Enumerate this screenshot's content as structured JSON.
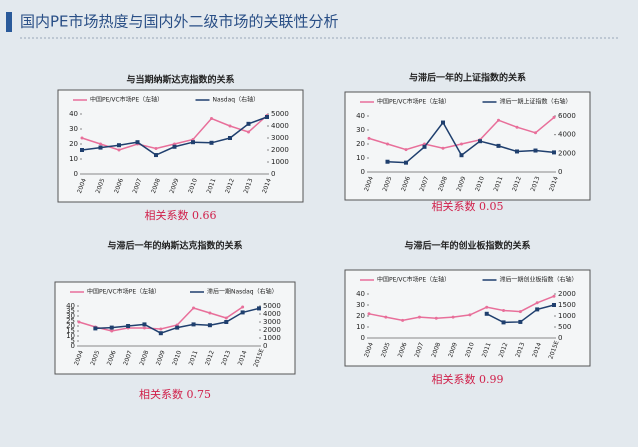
{
  "title": "国内PE市场热度与国内外二级市场的关联性分析",
  "chart_data": [
    {
      "type": "line",
      "title": "与当期纳斯达克指数的关系",
      "annotation": "相关系数 0.66",
      "categories": [
        "2004",
        "2005",
        "2006",
        "2007",
        "2008",
        "2009",
        "2010",
        "2011",
        "2012",
        "2013",
        "2014"
      ],
      "ylim": [
        0,
        40
      ],
      "yticks": [
        0,
        10,
        20,
        30,
        40
      ],
      "y2lim": [
        0,
        5000
      ],
      "y2ticks": [
        0,
        1000,
        2000,
        3000,
        4000,
        5000
      ],
      "series": [
        {
          "name": "中国PE/VC市场PE（左轴）",
          "color": "#e86f9a",
          "values": [
            24,
            20,
            16,
            20,
            17,
            20,
            23,
            37,
            32,
            28,
            39
          ]
        },
        {
          "name": "Nasdaq（右轴）",
          "color": "#1f3f6e",
          "axis": "y2",
          "values": [
            2000,
            2200,
            2400,
            2650,
            1580,
            2270,
            2650,
            2600,
            3000,
            4180,
            4750
          ]
        }
      ]
    },
    {
      "type": "line",
      "title": "与滞后一年的上证指数的关系",
      "annotation": "相关系数 0.05",
      "categories": [
        "2004",
        "2005",
        "2006",
        "2007",
        "2008",
        "2009",
        "2010",
        "2011",
        "2012",
        "2013",
        "2014"
      ],
      "ylim": [
        0,
        40
      ],
      "yticks": [
        0,
        10,
        20,
        30,
        40
      ],
      "y2lim": [
        0,
        6000
      ],
      "y2ticks": [
        0,
        2000,
        4000,
        6000
      ],
      "series": [
        {
          "name": "中国PE/VC市场PE（左轴）",
          "color": "#e86f9a",
          "values": [
            24,
            20,
            16,
            20,
            17,
            20,
            23,
            37,
            32,
            28,
            39
          ]
        },
        {
          "name": "滞后一期上证指数（右轴）",
          "color": "#1f3f6e",
          "axis": "y2",
          "values": [
            null,
            1100,
            1000,
            2700,
            5300,
            1800,
            3300,
            2800,
            2200,
            2300,
            2100
          ]
        }
      ]
    },
    {
      "type": "line",
      "title": "与滞后一年的纳斯达克指数的关系",
      "annotation": "相关系数 0.75",
      "categories": [
        "2004",
        "2005",
        "2006",
        "2007",
        "2008",
        "2009",
        "2010",
        "2011",
        "2012",
        "2013",
        "2014",
        "2015E"
      ],
      "ylim": [
        0,
        40
      ],
      "yticks": [
        0,
        5,
        10,
        15,
        20,
        25,
        30,
        35,
        40
      ],
      "y2lim": [
        0,
        5000
      ],
      "y2ticks": [
        0,
        1000,
        2000,
        3000,
        4000,
        5000
      ],
      "series": [
        {
          "name": "中国PE/VC市场PE（左轴）",
          "color": "#e86f9a",
          "values": [
            24,
            19,
            15,
            18,
            18,
            17,
            21,
            38,
            33,
            28,
            39,
            null
          ]
        },
        {
          "name": "滞后一期Nasdaq（右轴）",
          "color": "#1f3f6e",
          "axis": "y2",
          "values": [
            null,
            2200,
            2300,
            2500,
            2700,
            1600,
            2300,
            2700,
            2600,
            3000,
            4200,
            4700
          ]
        }
      ]
    },
    {
      "type": "line",
      "title": "与滞后一年的创业板指数的关系",
      "annotation": "相关系数 0.99",
      "categories": [
        "2004",
        "2005",
        "2006",
        "2007",
        "2008",
        "2009",
        "2010",
        "2011",
        "2012",
        "2013",
        "2014",
        "2015E"
      ],
      "ylim": [
        0,
        40
      ],
      "yticks": [
        0,
        10,
        20,
        30,
        40
      ],
      "y2lim": [
        0,
        2000
      ],
      "y2ticks": [
        0,
        500,
        1000,
        1500,
        2000
      ],
      "series": [
        {
          "name": "中国PE/VC市场PE（左轴）",
          "color": "#e86f9a",
          "values": [
            22,
            19,
            16,
            19,
            18,
            19,
            21,
            28,
            25,
            24,
            32,
            38
          ]
        },
        {
          "name": "滞后一期创业板指数（右轴）",
          "color": "#1f3f6e",
          "axis": "y2",
          "values": [
            null,
            null,
            null,
            null,
            null,
            null,
            null,
            1100,
            710,
            730,
            1300,
            1500
          ]
        }
      ]
    }
  ]
}
